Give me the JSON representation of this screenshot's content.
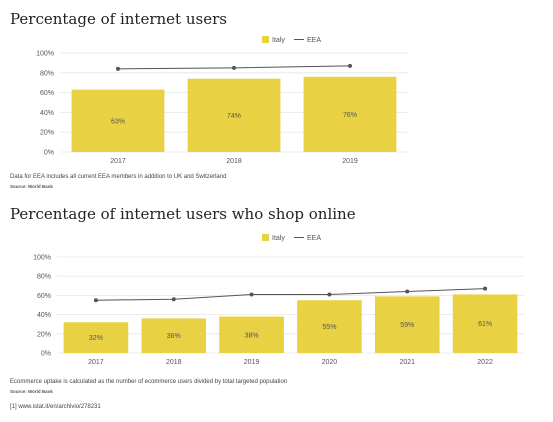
{
  "colors": {
    "bar": "#e8d243",
    "line": "#555555",
    "grid": "#e6e6e6",
    "tick": "#555555"
  },
  "chart_data": [
    {
      "type": "bar",
      "title": "Percentage of internet users",
      "categories": [
        "2017",
        "2018",
        "2019"
      ],
      "series": [
        {
          "name": "Italy",
          "type": "bar",
          "values": [
            63,
            74,
            76
          ]
        },
        {
          "name": "EEA",
          "type": "line",
          "values": [
            84,
            85,
            87
          ]
        }
      ],
      "data_labels": [
        "63%",
        "74%",
        "76%"
      ],
      "yticks": [
        "0%",
        "20%",
        "40%",
        "60%",
        "80%",
        "100%"
      ],
      "ylim": [
        0,
        100
      ],
      "grid": true,
      "legend": "top-center",
      "note": "Data for EEA includes all current EEA members in addition to UK and Switzerland",
      "source": "Source: World Bank"
    },
    {
      "type": "bar",
      "title": "Percentage of internet users who shop online",
      "categories": [
        "2017",
        "2018",
        "2019",
        "2020",
        "2021",
        "2022"
      ],
      "series": [
        {
          "name": "Italy",
          "type": "bar",
          "values": [
            32,
            36,
            38,
            55,
            59,
            61
          ]
        },
        {
          "name": "EEA",
          "type": "line",
          "values": [
            55,
            56,
            61,
            61,
            64,
            67
          ]
        }
      ],
      "data_labels": [
        "32%",
        "36%",
        "38%",
        "55%",
        "59%",
        "61%"
      ],
      "yticks": [
        "0%",
        "20%",
        "40%",
        "60%",
        "80%",
        "100%"
      ],
      "ylim": [
        0,
        100
      ],
      "grid": true,
      "legend": "top-center",
      "note": "Ecommerce uptake is calculated as the number of ecommerce users divided by total targeted population",
      "source": "Source: World Bank"
    }
  ],
  "footnote": "[1] www.istat.it/en/archivio/278231"
}
